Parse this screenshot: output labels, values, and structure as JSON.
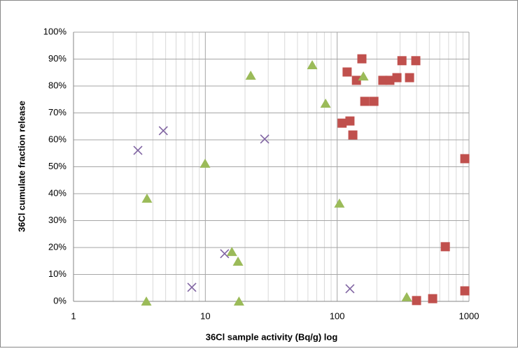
{
  "chart_data": {
    "type": "scatter",
    "x_label": "36Cl sample activity (Bq/g) log",
    "y_label": "36Cl cumulate fraction release",
    "xlog": true,
    "grid": true,
    "xlim": [
      1,
      1000
    ],
    "xticks": [
      1,
      10,
      100,
      1000
    ],
    "ylim": [
      0,
      100
    ],
    "yticks": [
      {
        "value": 0,
        "label": "0%"
      },
      {
        "value": 10,
        "label": "10%"
      },
      {
        "value": 20,
        "label": "20%"
      },
      {
        "value": 30,
        "label": "30%"
      },
      {
        "value": 40,
        "label": "40%"
      },
      {
        "value": 50,
        "label": "50%"
      },
      {
        "value": 60,
        "label": "60%"
      },
      {
        "value": 70,
        "label": "70%"
      },
      {
        "value": 80,
        "label": "80%"
      },
      {
        "value": 90,
        "label": "90%"
      },
      {
        "value": 100,
        "label": "100%"
      }
    ],
    "series": [
      {
        "color": "#c0504d",
        "marker": "square",
        "x": [
          109,
          119,
          125,
          131.5,
          140,
          154,
          162,
          190,
          222,
          251,
          284,
          310,
          354,
          395,
          400,
          530,
          661,
          930,
          930
        ],
        "values": [
          66.2,
          85.2,
          67.0,
          61.8,
          82.1,
          90.1,
          74.3,
          74.3,
          82.1,
          82.1,
          83.1,
          89.4,
          83.1,
          89.4,
          0.3,
          1.0,
          20.3,
          53.0,
          3.9
        ]
      },
      {
        "color": "#9bbb59",
        "marker": "triangle",
        "x": [
          3.57,
          3.61,
          9.96,
          15.9,
          17.7,
          18,
          22.1,
          64.7,
          81.7,
          104,
          158,
          337
        ],
        "values": [
          0,
          38.2,
          51.2,
          18.4,
          14.8,
          0,
          83.9,
          87.8,
          73.5,
          36.4,
          83.6,
          1.6
        ]
      },
      {
        "color": "#8064a2",
        "marker": "x",
        "x": [
          3.08,
          4.8,
          7.9,
          14.0,
          28.2,
          125
        ],
        "values": [
          56.1,
          63.4,
          5.2,
          17.7,
          60.3,
          4.7
        ]
      }
    ]
  }
}
